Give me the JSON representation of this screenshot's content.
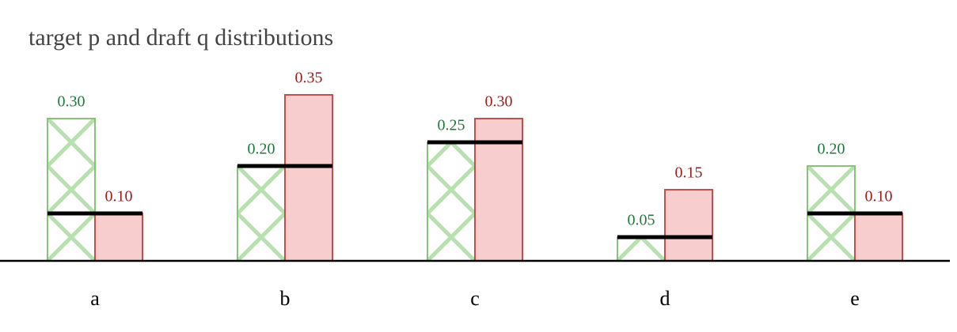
{
  "chart_data": {
    "type": "bar",
    "title": "target p and draft q distributions",
    "categories": [
      "a",
      "b",
      "c",
      "d",
      "e"
    ],
    "series": [
      {
        "color": "#1e7a3c",
        "values": [
          0.3,
          0.2,
          0.25,
          0.05,
          0.2
        ],
        "value_labels": [
          "0.30",
          "0.20",
          "0.25",
          "0.05",
          "0.20"
        ]
      },
      {
        "color": "#9e1b1b",
        "values": [
          0.1,
          0.35,
          0.3,
          0.15,
          0.1
        ],
        "value_labels": [
          "0.10",
          "0.35",
          "0.30",
          "0.15",
          "0.10"
        ]
      }
    ]
  }
}
